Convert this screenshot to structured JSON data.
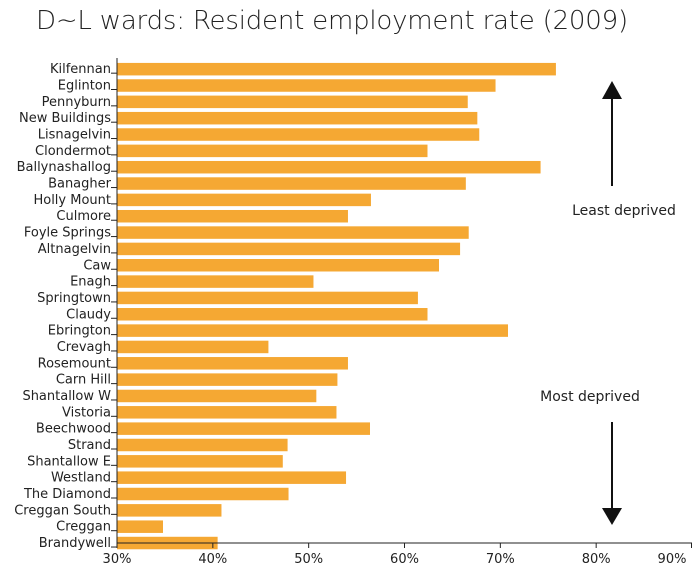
{
  "chart_data": {
    "type": "bar",
    "orientation": "horizontal",
    "title": "D~L wards: Resident employment rate (2009)",
    "xlabel": "",
    "ylabel": "",
    "xlim": [
      30,
      90
    ],
    "xticks": [
      30,
      40,
      50,
      60,
      70,
      80,
      90
    ],
    "xtick_labels": [
      "30%",
      "40%",
      "50%",
      "60%",
      "70%",
      "80%",
      "90%"
    ],
    "categories": [
      "Kilfennan",
      "Eglinton",
      "Pennyburn",
      "New Buildings",
      "Lisnagelvin",
      "Clondermot",
      "Ballynashallog",
      "Banagher",
      "Holly Mount",
      "Culmore",
      "Foyle Springs",
      "Altnagelvin",
      "Caw",
      "Enagh",
      "Springtown",
      "Claudy",
      "Ebrington",
      "Crevagh",
      "Rosemount",
      "Carn Hill",
      "Shantallow W",
      "Vistoria",
      "Beechwood",
      "Strand",
      "Shantallow E",
      "Westland",
      "The Diamond",
      "Creggan South",
      "Creggan",
      "Brandywell"
    ],
    "values": [
      75.8,
      69.5,
      66.6,
      67.6,
      67.8,
      62.4,
      74.2,
      66.4,
      56.5,
      54.1,
      66.7,
      65.8,
      63.6,
      50.5,
      61.4,
      62.4,
      70.8,
      45.8,
      54.1,
      53.0,
      50.8,
      52.9,
      56.4,
      47.8,
      47.3,
      53.9,
      47.9,
      40.9,
      34.8,
      40.5
    ],
    "bar_color": "#F5A833",
    "grid": false,
    "annotations": [
      {
        "text": "Least deprived",
        "arrow": "up"
      },
      {
        "text": "Most deprived",
        "arrow": "down"
      }
    ]
  }
}
